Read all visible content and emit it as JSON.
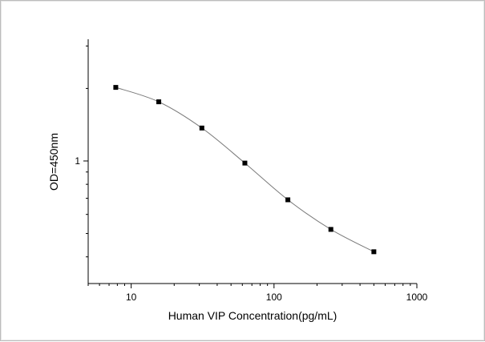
{
  "chart_data": {
    "type": "line",
    "xlabel": "Human VIP Concentration(pg/mL)",
    "ylabel": "OD=450nm",
    "x_scale": "log",
    "y_scale": "log",
    "xlim": [
      5,
      1000
    ],
    "ylim": [
      0.31,
      3.2
    ],
    "x_tick_labels": [
      "10",
      "100",
      "1000"
    ],
    "y_tick_labels": [
      "1"
    ],
    "grid": false,
    "series": [
      {
        "x": [
          7.8,
          15.6,
          31.25,
          62.5,
          125,
          250,
          500
        ],
        "y": [
          2.02,
          1.76,
          1.37,
          0.98,
          0.69,
          0.52,
          0.42
        ],
        "marker": "square",
        "line_color": "#7a7a7a",
        "marker_color": "#000000"
      }
    ]
  }
}
